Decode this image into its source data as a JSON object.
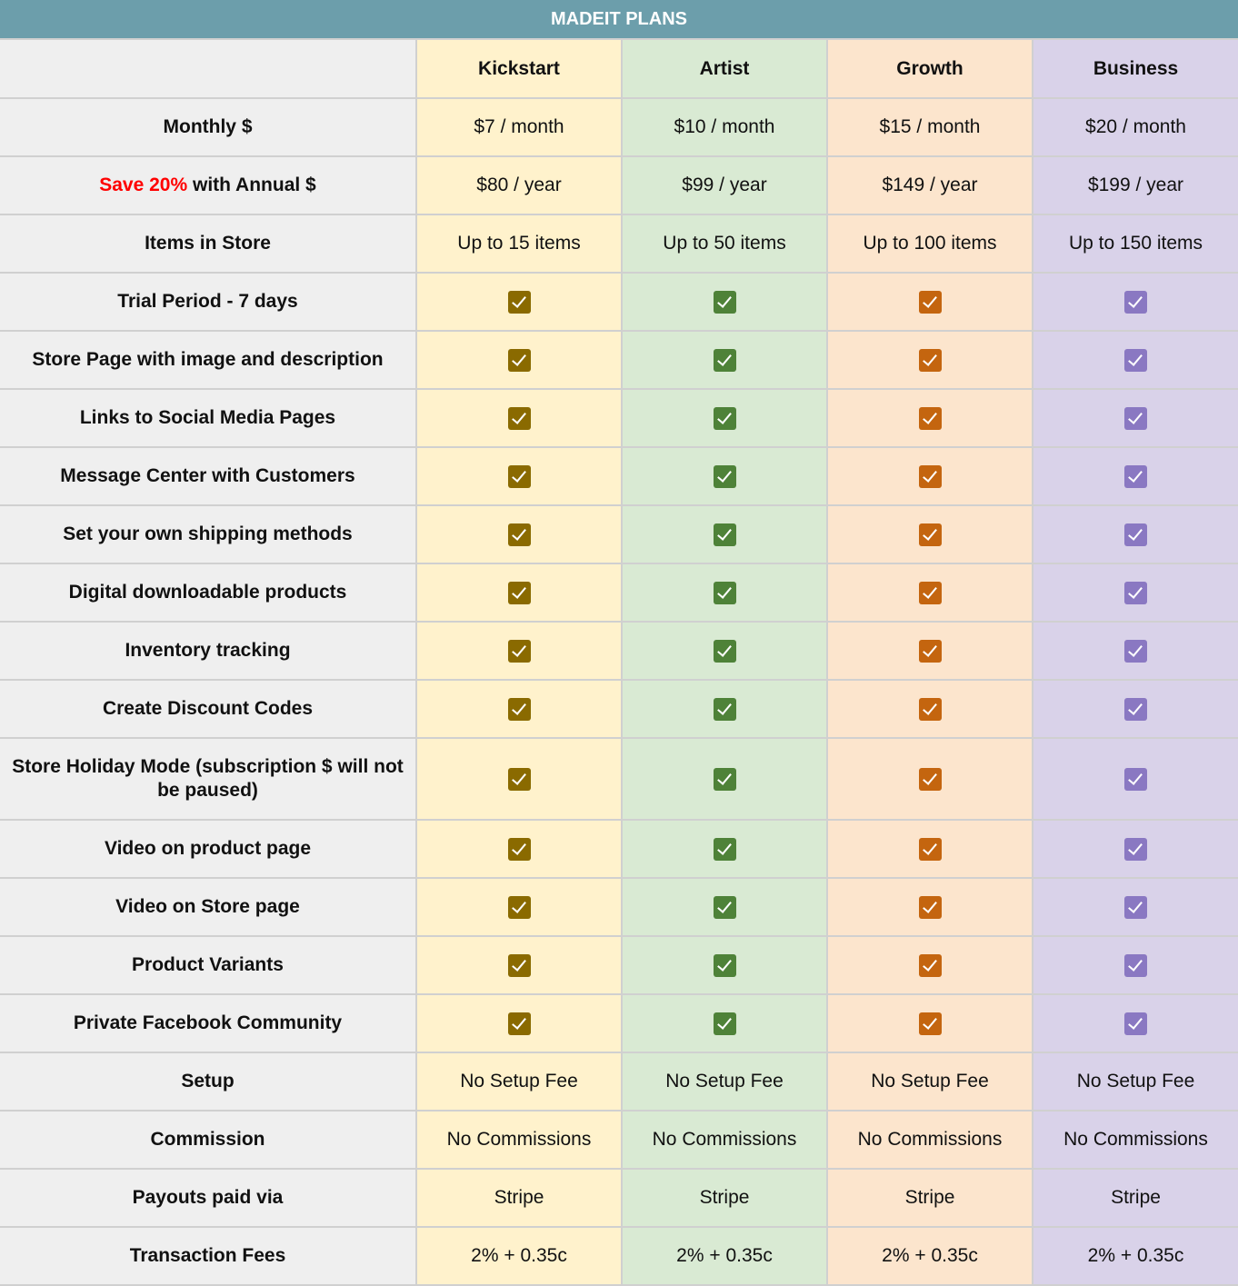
{
  "title": "MADEIT PLANS",
  "colors": {
    "header": "#6c9eab",
    "plan_bg": [
      "#fff2cc",
      "#d9ead3",
      "#fce5cd",
      "#d9d2e9"
    ],
    "check": [
      "#8a6a00",
      "#4e8238",
      "#c4650f",
      "#8a78c2"
    ]
  },
  "plans": [
    "Kickstart",
    "Artist",
    "Growth",
    "Business"
  ],
  "rows": [
    {
      "label": "Monthly $",
      "values": [
        "$7 / month",
        "$10 / month",
        "$15 / month",
        "$20 / month"
      ]
    },
    {
      "label_highlight": "Save 20%",
      "label": " with Annual $",
      "values": [
        "$80 / year",
        "$99 / year",
        "$149 / year",
        "$199 / year"
      ]
    },
    {
      "label": "Items in Store",
      "values": [
        "Up to 15 items",
        "Up to 50 items",
        "Up to 100 items",
        "Up to 150 items"
      ]
    },
    {
      "label": "Trial Period - 7 days",
      "check": [
        true,
        true,
        true,
        true
      ]
    },
    {
      "label": "Store Page with image and description",
      "check": [
        true,
        true,
        true,
        true
      ]
    },
    {
      "label": "Links to Social Media Pages",
      "check": [
        true,
        true,
        true,
        true
      ]
    },
    {
      "label": "Message Center with Customers",
      "check": [
        true,
        true,
        true,
        true
      ]
    },
    {
      "label": "Set your own shipping methods",
      "check": [
        true,
        true,
        true,
        true
      ]
    },
    {
      "label": "Digital downloadable products",
      "check": [
        true,
        true,
        true,
        true
      ]
    },
    {
      "label": "Inventory tracking",
      "check": [
        true,
        true,
        true,
        true
      ]
    },
    {
      "label": "Create Discount Codes",
      "check": [
        true,
        true,
        true,
        true
      ]
    },
    {
      "label": "Store Holiday Mode (subscription $ will not be paused)",
      "check": [
        true,
        true,
        true,
        true
      ]
    },
    {
      "label": "Video on product page",
      "check": [
        true,
        true,
        true,
        true
      ]
    },
    {
      "label": "Video on Store page",
      "check": [
        true,
        true,
        true,
        true
      ]
    },
    {
      "label": "Product Variants",
      "check": [
        true,
        true,
        true,
        true
      ]
    },
    {
      "label": "Private Facebook Community",
      "check": [
        true,
        true,
        true,
        true
      ]
    },
    {
      "label": "Setup",
      "values": [
        "No Setup Fee",
        "No Setup Fee",
        "No Setup Fee",
        "No Setup Fee"
      ]
    },
    {
      "label": "Commission",
      "values": [
        "No Commissions",
        "No Commissions",
        "No Commissions",
        "No Commissions"
      ]
    },
    {
      "label": "Payouts paid via",
      "values": [
        "Stripe",
        "Stripe",
        "Stripe",
        "Stripe"
      ]
    },
    {
      "label": "Transaction Fees",
      "values": [
        "2% + 0.35c",
        "2% + 0.35c",
        "2% + 0.35c",
        "2% + 0.35c"
      ]
    }
  ]
}
